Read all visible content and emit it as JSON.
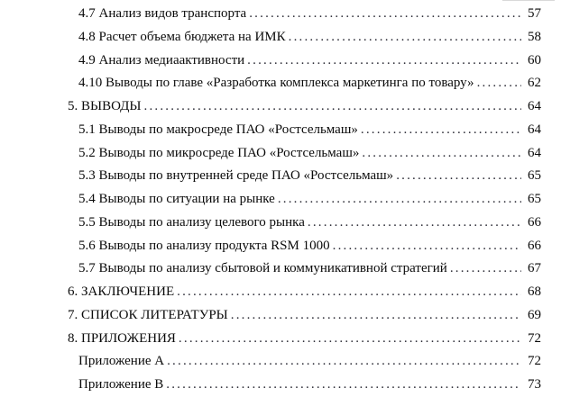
{
  "page": {
    "background": "#ffffff",
    "text_color": "#0a0a0a",
    "leader_color": "#2e2e38",
    "leader_char": "."
  },
  "toc": {
    "entries": [
      {
        "label": "4.7 Анализ видов транспорта",
        "page": "57",
        "level": 1
      },
      {
        "label": "4.8 Расчет объема бюджета на ИМК",
        "page": "58",
        "level": 1
      },
      {
        "label": "4.9 Анализ медиаактивности",
        "page": "60",
        "level": 1
      },
      {
        "label": "4.10 Выводы по главе «Разработка комплекса маркетинга по товару»",
        "page": "62",
        "level": 1
      },
      {
        "label": "5. ВЫВОДЫ",
        "page": "64",
        "level": 0
      },
      {
        "label": "5.1 Выводы по макросреде ПАО «Ростсельмаш»",
        "page": "64",
        "level": 1
      },
      {
        "label": "5.2 Выводы по микросреде ПАО «Ростсельмаш»",
        "page": "64",
        "level": 1
      },
      {
        "label": "5.3 Выводы по внутренней среде ПАО «Ростсельмаш»",
        "page": "65",
        "level": 1
      },
      {
        "label": "5.4 Выводы по ситуации на рынке",
        "page": "65",
        "level": 1
      },
      {
        "label": "5.5 Выводы по анализу целевого рынка",
        "page": "66",
        "level": 1
      },
      {
        "label": "5.6 Выводы по анализу продукта RSM 1000",
        "page": "66",
        "level": 1
      },
      {
        "label": "5.7 Выводы по анализу сбытовой и коммуникативной стратегий",
        "page": "67",
        "level": 1
      },
      {
        "label": "6. ЗАКЛЮЧЕНИЕ",
        "page": "68",
        "level": 0
      },
      {
        "label": "7. СПИСОК ЛИТЕРАТУРЫ",
        "page": "69",
        "level": 0
      },
      {
        "label": "8. ПРИЛОЖЕНИЯ",
        "page": "72",
        "level": 0
      },
      {
        "label": "Приложение А",
        "page": "72",
        "level": 1
      },
      {
        "label": "Приложение В",
        "page": "73",
        "level": 1
      }
    ]
  }
}
